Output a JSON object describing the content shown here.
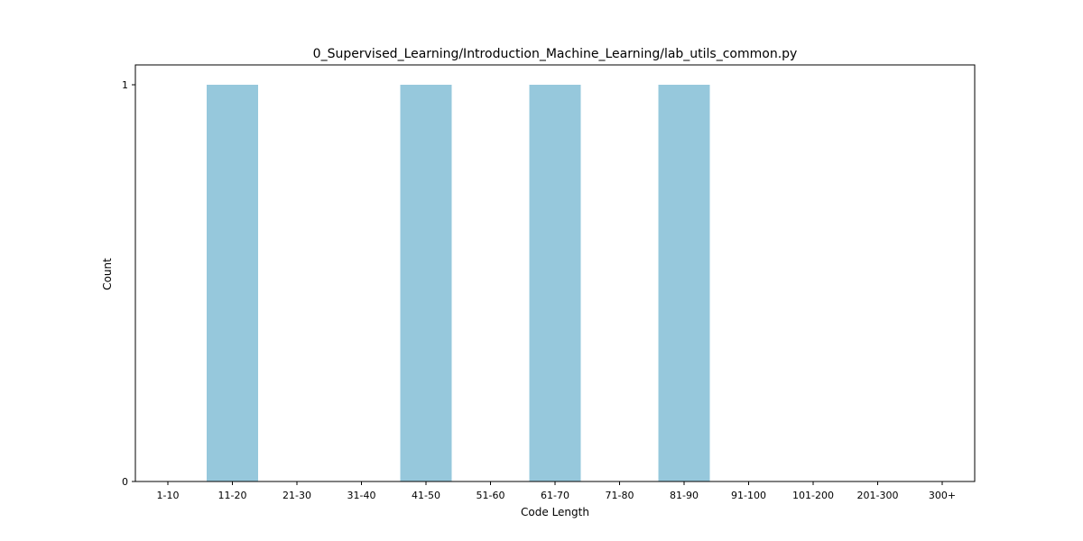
{
  "chart_data": {
    "type": "bar",
    "title": "0_Supervised_Learning/Introduction_Machine_Learning/lab_utils_common.py",
    "xlabel": "Code Length",
    "ylabel": "Count",
    "categories": [
      "1-10",
      "11-20",
      "21-30",
      "31-40",
      "41-50",
      "51-60",
      "61-70",
      "71-80",
      "81-90",
      "91-100",
      "101-200",
      "201-300",
      "300+"
    ],
    "values": [
      0,
      1,
      0,
      0,
      1,
      0,
      1,
      0,
      1,
      0,
      0,
      0,
      0
    ],
    "ylim": [
      0,
      1
    ],
    "yticks": [
      "0",
      "1"
    ],
    "grid": false,
    "bar_color": "#96c8dc"
  }
}
